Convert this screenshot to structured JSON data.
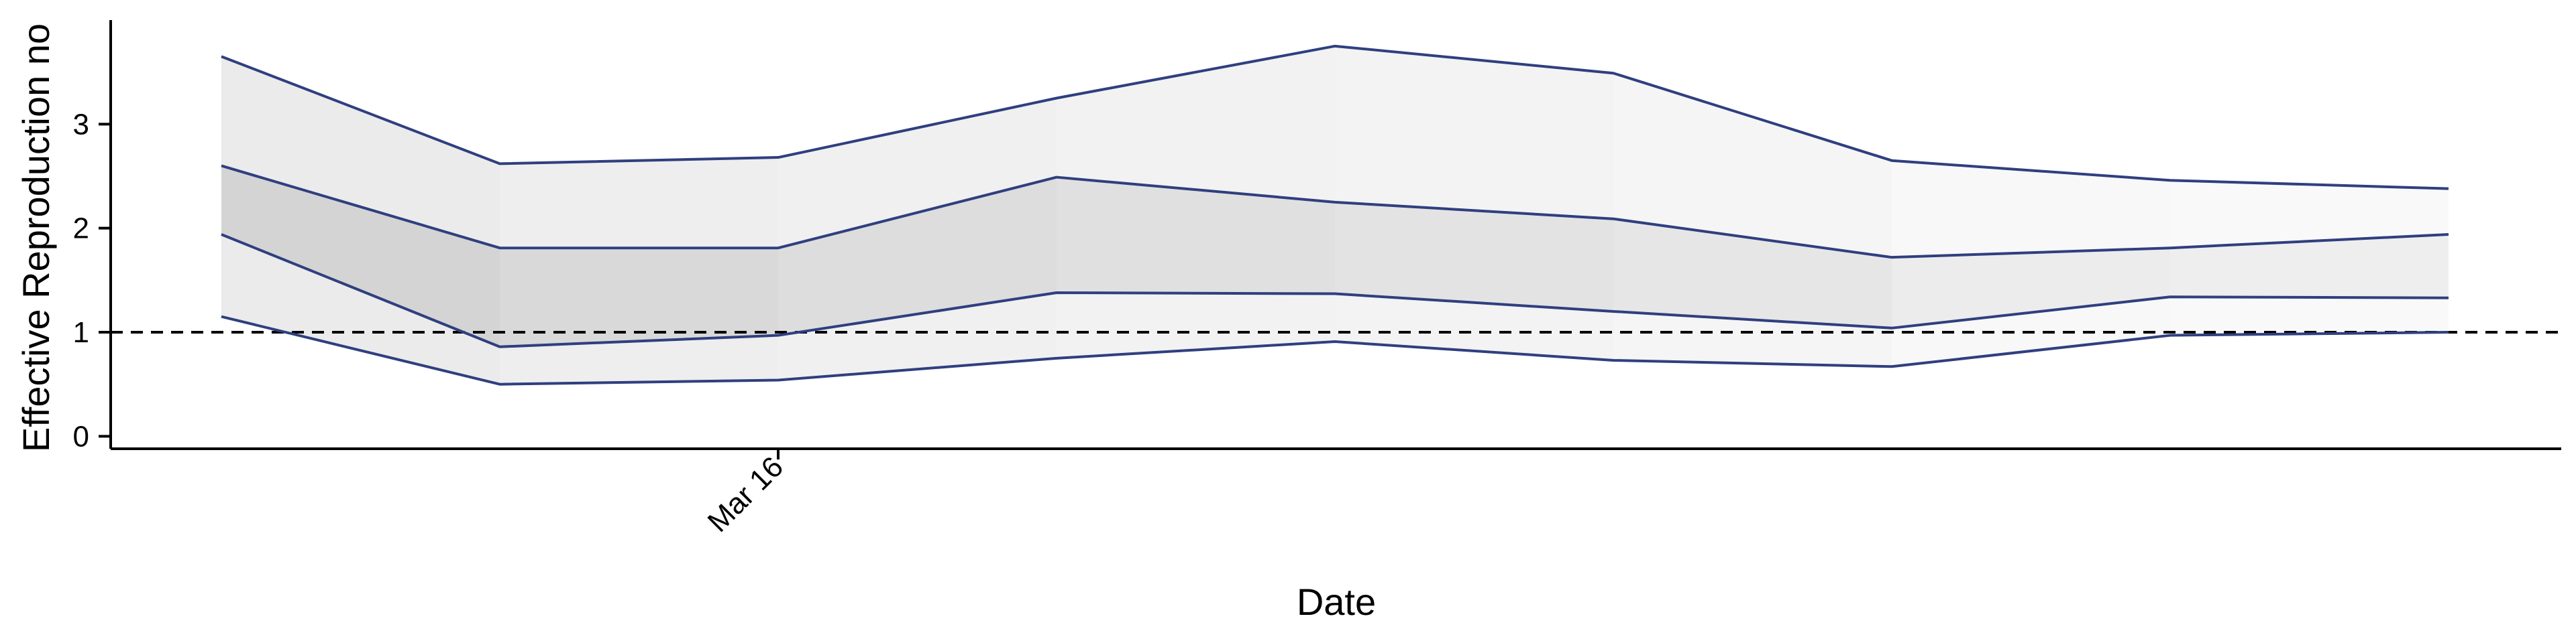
{
  "chart_data": {
    "type": "area",
    "xlabel": "Date",
    "ylabel": "Effective Reproduction no",
    "x": [
      0,
      1,
      2,
      3,
      4,
      5,
      6,
      7,
      8
    ],
    "x_ticks": [
      {
        "x": 2,
        "label": "Mar 16"
      }
    ],
    "ylim": [
      -0.12,
      4.0
    ],
    "y_ticks": [
      0,
      1,
      2,
      3
    ],
    "reference_line": {
      "y": 1,
      "style": "dashed",
      "color": "#000000"
    },
    "series": [
      {
        "role": "outer_upper",
        "values": [
          3.65,
          2.62,
          2.68,
          3.25,
          3.75,
          3.49,
          2.65,
          2.46,
          2.38
        ]
      },
      {
        "role": "inner_upper",
        "values": [
          2.6,
          1.81,
          1.81,
          2.49,
          2.25,
          2.09,
          1.72,
          1.81,
          1.94
        ]
      },
      {
        "role": "inner_lower",
        "values": [
          1.94,
          0.86,
          0.97,
          1.38,
          1.37,
          1.2,
          1.04,
          1.34,
          1.33
        ]
      },
      {
        "role": "outer_lower",
        "values": [
          1.15,
          0.5,
          0.54,
          0.75,
          0.91,
          0.73,
          0.67,
          0.97,
          1.0
        ]
      }
    ],
    "outer_band_shades": [
      "#ebebeb",
      "#eeeeee",
      "#f0f0f0",
      "#f2f2f2",
      "#f3f3f3",
      "#f5f5f5",
      "#f8f8f8",
      "#f9f9f9"
    ],
    "inner_band_shades": [
      "#d4d4d4",
      "#d9d9d9",
      "#dddddd",
      "#e0e0e0",
      "#e3e3e3",
      "#e6e6e6",
      "#ececec",
      "#eeeeee"
    ],
    "line_color": "#2f3f7f",
    "grid": false,
    "legend": "none"
  }
}
